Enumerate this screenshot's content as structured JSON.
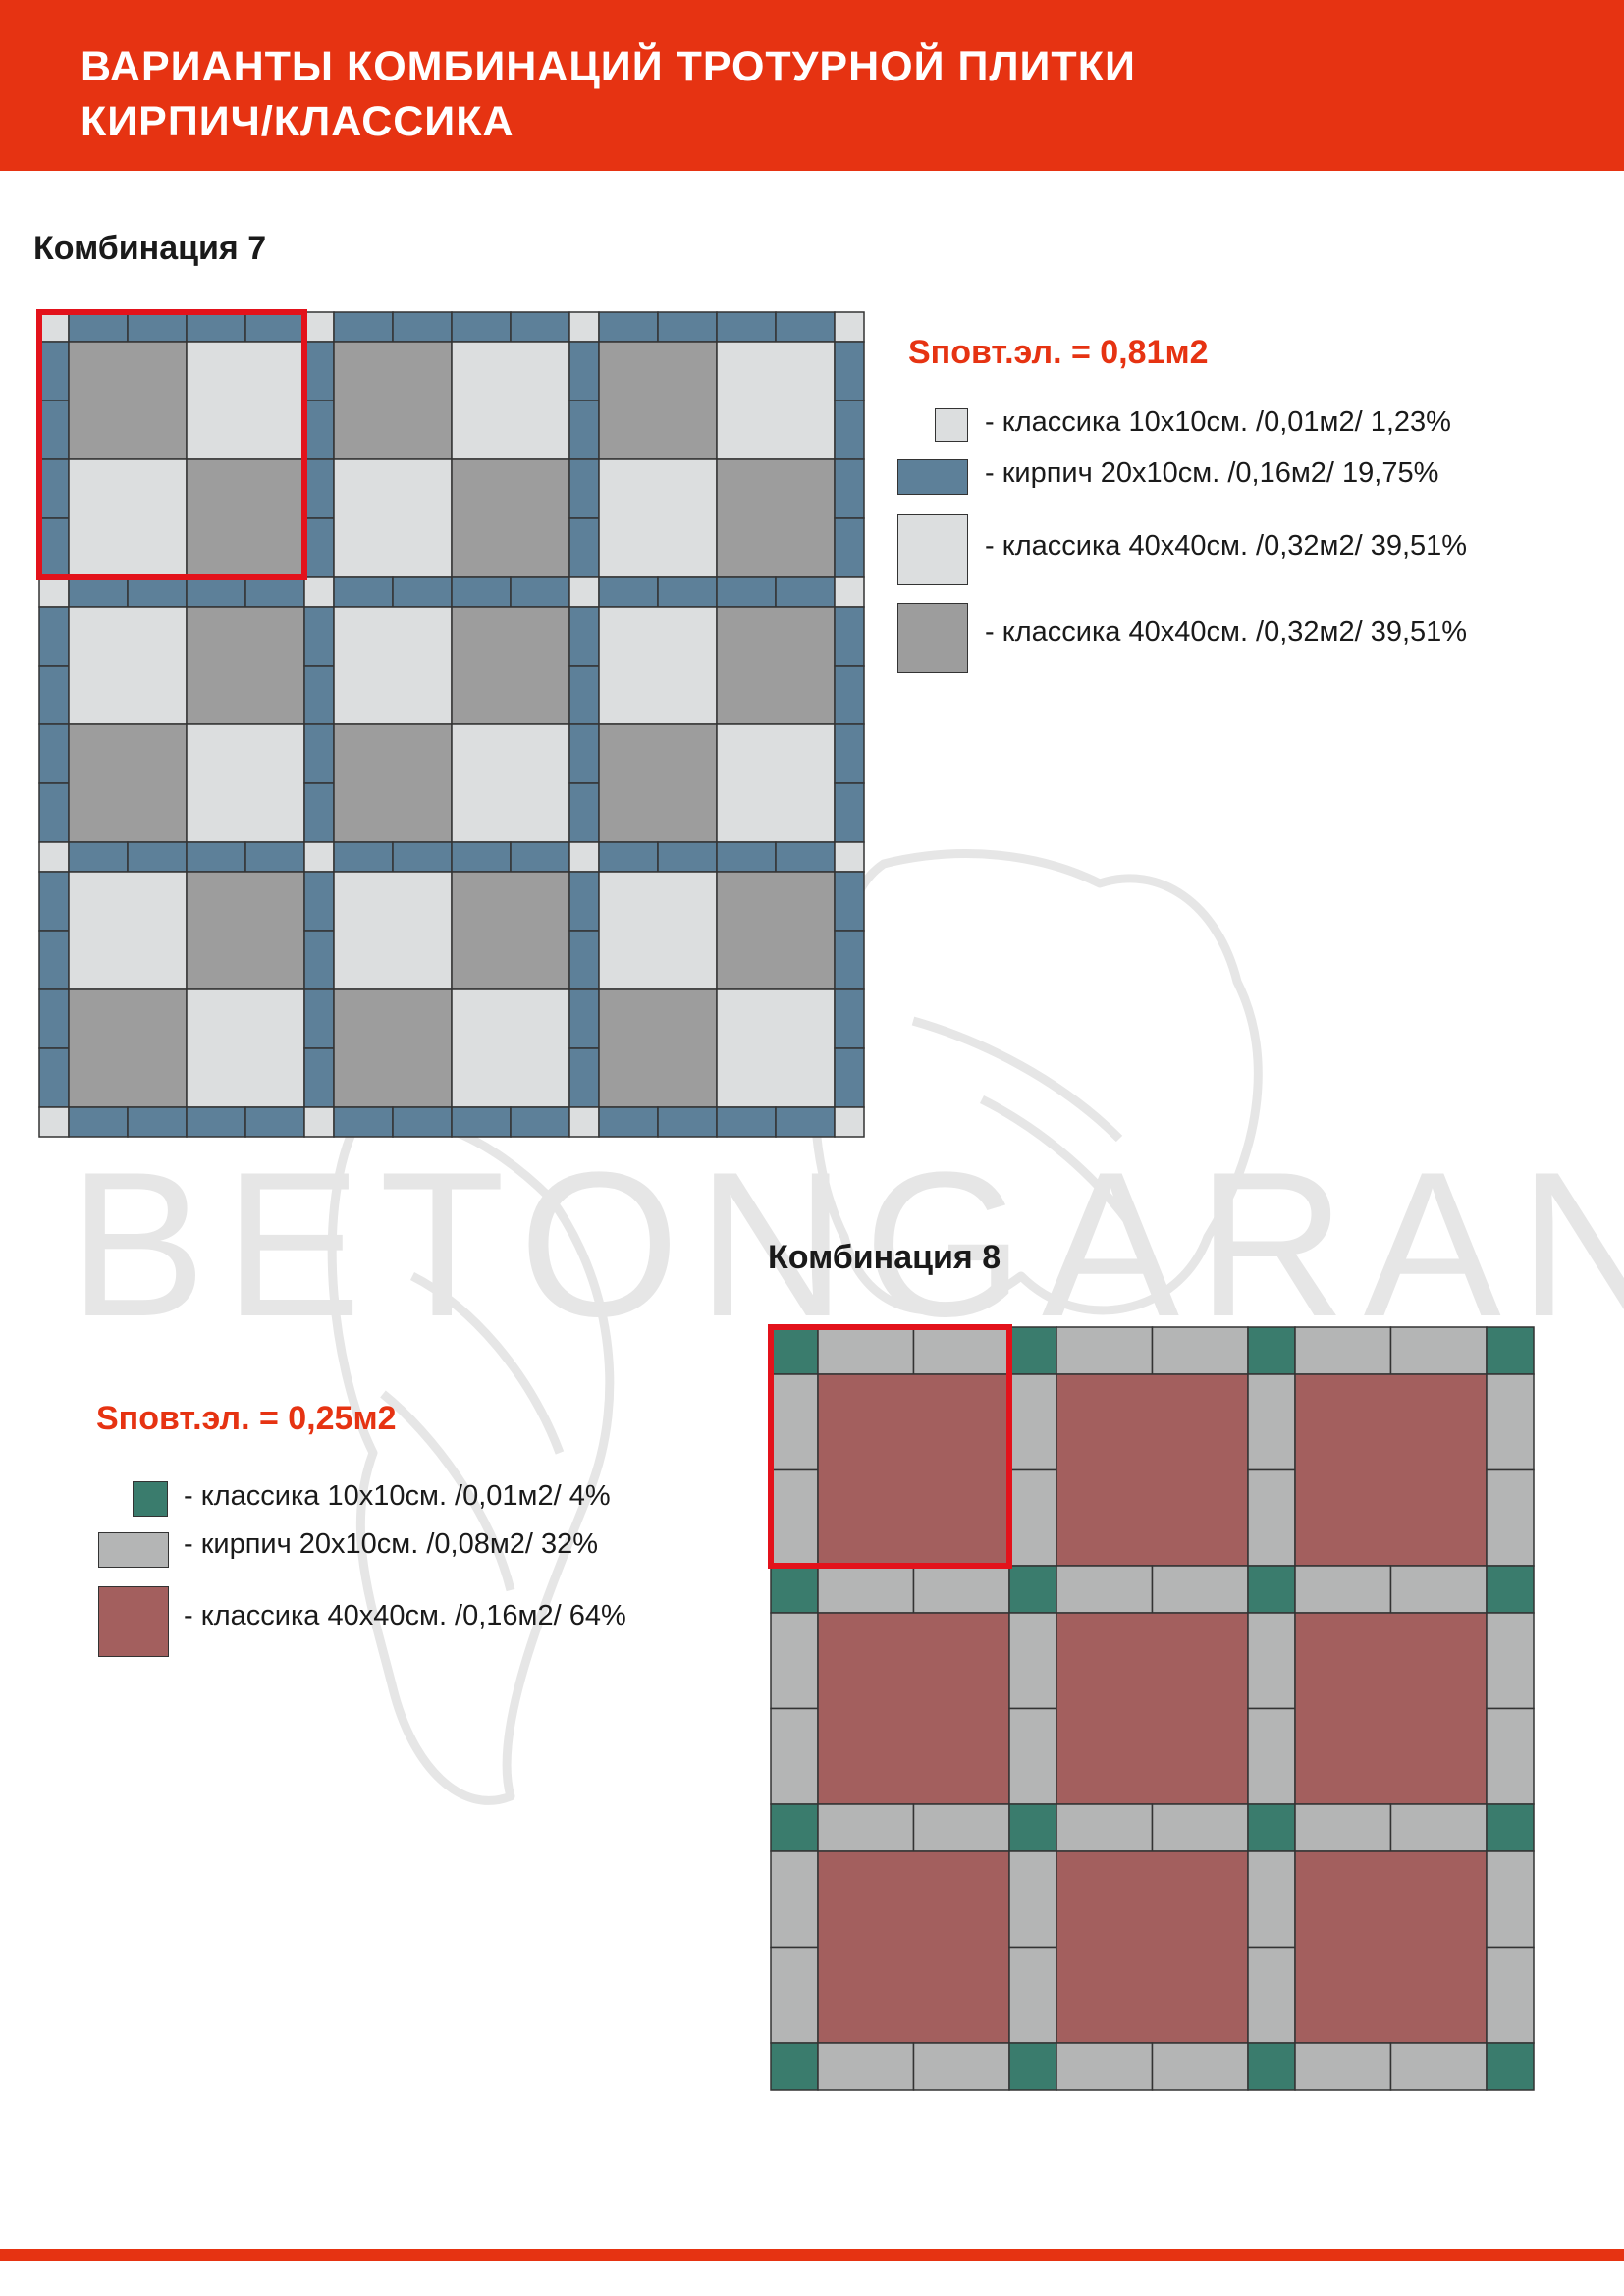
{
  "header": {
    "title_line1": "ВАРИАНТЫ КОМБИНАЦИЙ ТРОТУРНОЙ ПЛИТКИ",
    "title_line2": "КИРПИЧ/КЛАССИКА"
  },
  "watermark": {
    "text": "BETONGARANT"
  },
  "combo7": {
    "title": "Комбинация 7",
    "area": "Sповт.эл. = 0,81м2",
    "legend": [
      {
        "label": "- классика 10х10см. /0,01м2/ 1,23%",
        "color": "#dcdedf"
      },
      {
        "label": "- кирпич 20х10см. /0,16м2/ 19,75%",
        "color": "#5d8099"
      },
      {
        "label": "- классика 40х40см. /0,32м2/ 39,51%",
        "color": "#dcdedf"
      },
      {
        "label": "- классика 40х40см. /0,32м2/ 39,51%",
        "color": "#9d9d9d"
      }
    ]
  },
  "combo8": {
    "title": "Комбинация 8",
    "area": "Sповт.эл. = 0,25м2",
    "legend": [
      {
        "label": "- классика 10х10см. /0,01м2/ 4%",
        "color": "#3a7c6d"
      },
      {
        "label": "- кирпич 20х10см. /0,08м2/ 32%",
        "color": "#b4b5b5"
      },
      {
        "label": "- классика 40х40см. /0,16м2/ 64%",
        "color": "#a35f5e"
      }
    ]
  },
  "colors": {
    "accent": "#e63312",
    "highlight": "#e3121b",
    "stroke": "#333333"
  }
}
